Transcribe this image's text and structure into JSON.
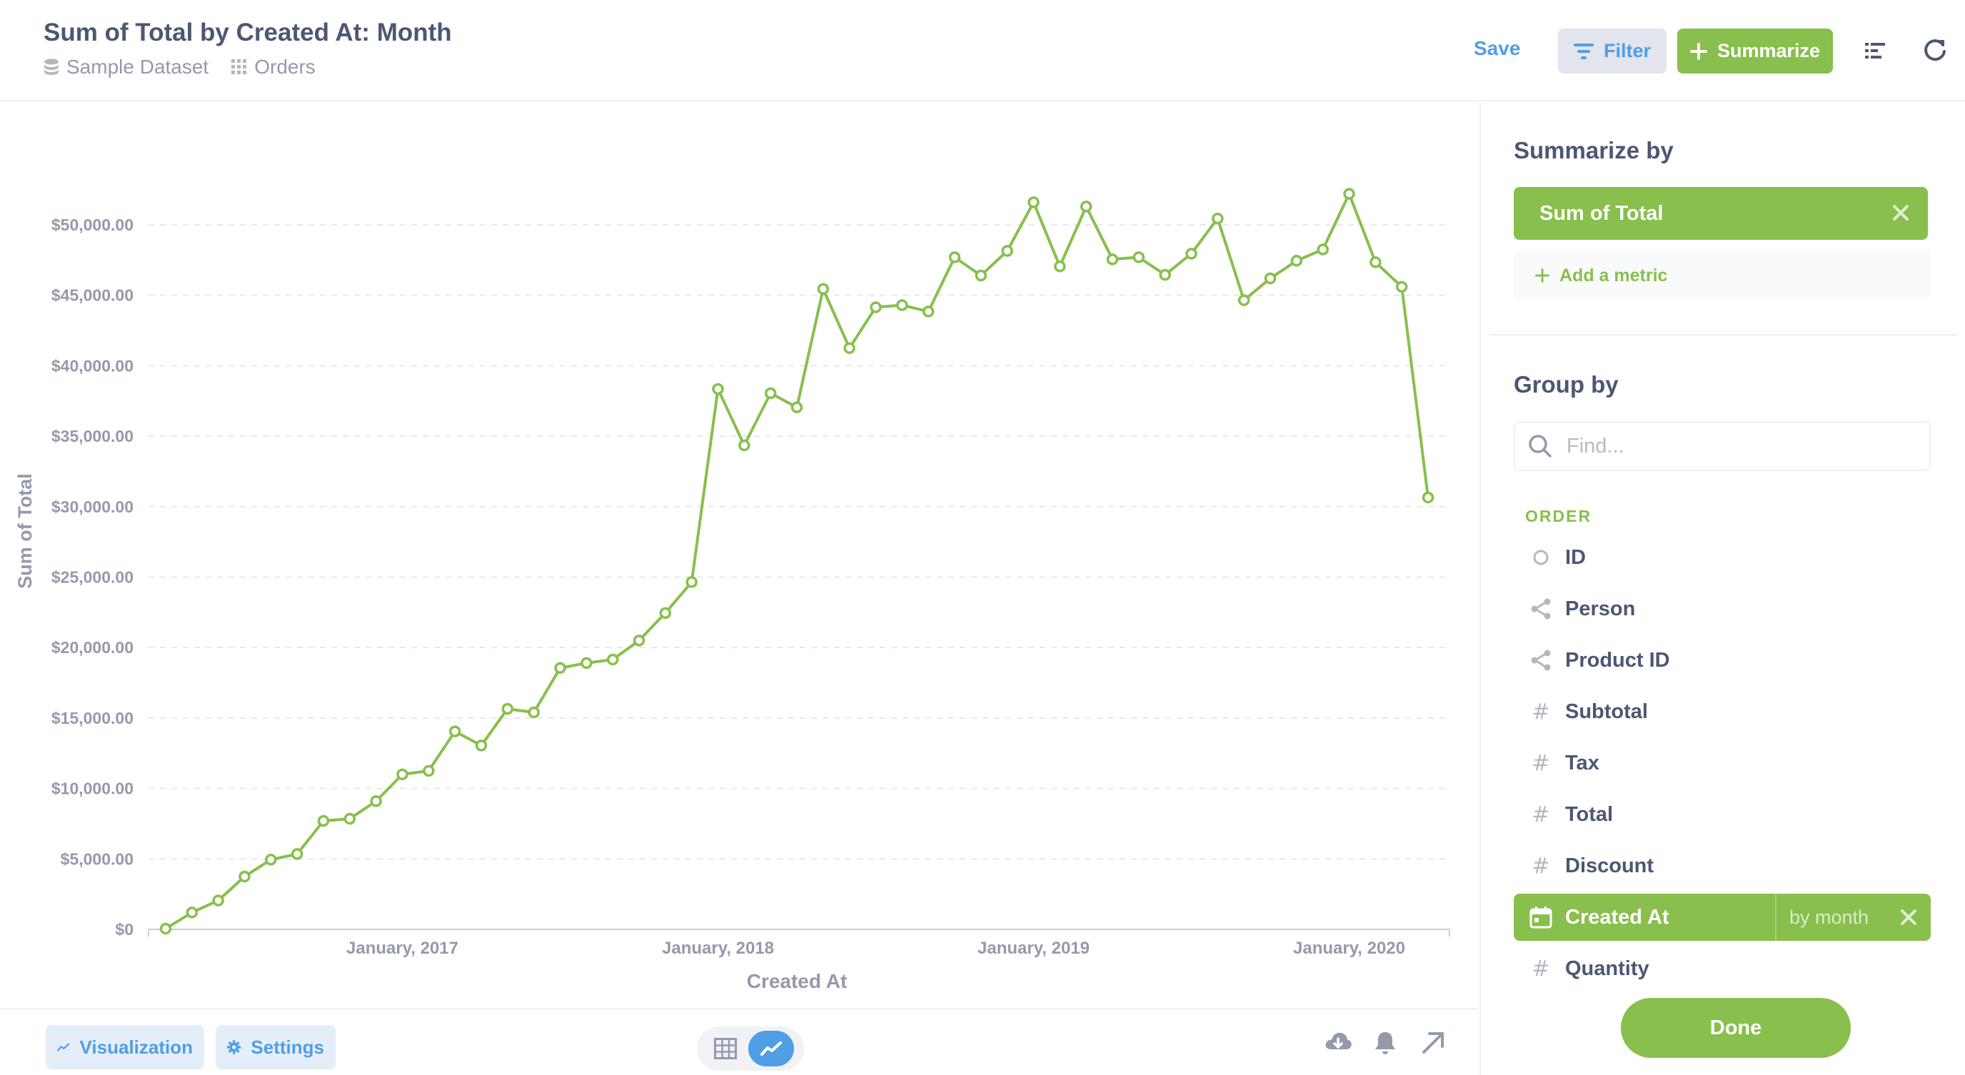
{
  "header": {
    "title": "Sum of Total by Created At: Month",
    "database": "Sample Dataset",
    "table": "Orders",
    "save_label": "Save",
    "filter_label": "Filter",
    "summarize_label": "Summarize"
  },
  "colors": {
    "brand": "#509ee3",
    "accent": "#88bf4d"
  },
  "footer": {
    "visualization_label": "Visualization",
    "settings_label": "Settings"
  },
  "sidebar": {
    "summarize_title": "Summarize by",
    "metric": "Sum of Total",
    "add_metric_label": "Add a metric",
    "groupby_title": "Group by",
    "search_placeholder": "Find...",
    "table_label": "ORDER",
    "fields": [
      {
        "name": "ID",
        "icon": "pk-icon"
      },
      {
        "name": "Person",
        "icon": "connections-icon"
      },
      {
        "name": "Product ID",
        "icon": "connections-icon"
      },
      {
        "name": "Subtotal",
        "icon": "number-icon"
      },
      {
        "name": "Tax",
        "icon": "number-icon"
      },
      {
        "name": "Total",
        "icon": "number-icon"
      },
      {
        "name": "Discount",
        "icon": "number-icon"
      },
      {
        "name": "Created At",
        "icon": "calendar-icon",
        "active": true,
        "bucket": "by month"
      },
      {
        "name": "Quantity",
        "icon": "number-icon"
      }
    ],
    "done_label": "Done"
  },
  "chart_data": {
    "type": "line",
    "title": "",
    "xlabel": "Created At",
    "ylabel": "Sum of Total",
    "ylim": [
      0,
      50000
    ],
    "yticks": [
      0,
      5000,
      10000,
      15000,
      20000,
      25000,
      30000,
      35000,
      40000,
      45000,
      50000
    ],
    "ytick_labels": [
      "$0",
      "$5,000.00",
      "$10,000.00",
      "$15,000.00",
      "$20,000.00",
      "$25,000.00",
      "$30,000.00",
      "$35,000.00",
      "$40,000.00",
      "$45,000.00",
      "$50,000.00"
    ],
    "xtick_labels": [
      {
        "label": "January, 2017",
        "date": "2017-01"
      },
      {
        "label": "January, 2018",
        "date": "2018-01"
      },
      {
        "label": "January, 2019",
        "date": "2019-01"
      },
      {
        "label": "January, 2020",
        "date": "2020-01"
      }
    ],
    "grid": true,
    "color": "#88bf4d",
    "x": [
      "2016-04",
      "2016-05",
      "2016-06",
      "2016-07",
      "2016-08",
      "2016-09",
      "2016-10",
      "2016-11",
      "2016-12",
      "2017-01",
      "2017-02",
      "2017-03",
      "2017-04",
      "2017-05",
      "2017-06",
      "2017-07",
      "2017-08",
      "2017-09",
      "2017-10",
      "2017-11",
      "2017-12",
      "2018-01",
      "2018-02",
      "2018-03",
      "2018-04",
      "2018-05",
      "2018-06",
      "2018-07",
      "2018-08",
      "2018-09",
      "2018-10",
      "2018-11",
      "2018-12",
      "2019-01",
      "2019-02",
      "2019-03",
      "2019-04",
      "2019-05",
      "2019-06",
      "2019-07",
      "2019-08",
      "2019-09",
      "2019-10",
      "2019-11",
      "2019-12",
      "2020-01",
      "2020-02",
      "2020-03",
      "2020-04"
    ],
    "values": [
      52,
      1200,
      2050,
      3750,
      4950,
      5350,
      7700,
      7850,
      9100,
      11000,
      11250,
      14050,
      13050,
      15650,
      15400,
      18550,
      18900,
      19150,
      20500,
      22450,
      24650,
      38350,
      34350,
      38050,
      37050,
      45450,
      41250,
      44150,
      44300,
      43850,
      47700,
      46400,
      48150,
      51600,
      47050,
      51300,
      47550,
      47700,
      46450,
      47950,
      50450,
      44650,
      46200,
      47450,
      48250,
      52200,
      47350,
      45600,
      30650
    ]
  }
}
